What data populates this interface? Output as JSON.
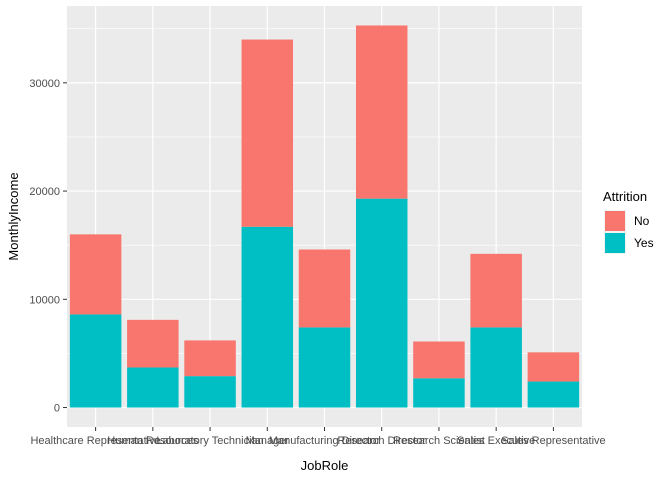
{
  "chart_data": {
    "type": "bar",
    "stacked": true,
    "categories": [
      "Healthcare Representative",
      "Human Resources",
      "Laboratory Technician",
      "Manager",
      "Manufacturing Director",
      "Research Director",
      "Research Scientist",
      "Sales Executive",
      "Sales Representative"
    ],
    "series": [
      {
        "name": "No",
        "color": "#F8766D",
        "values": [
          7400,
          4400,
          3300,
          17300,
          7200,
          16000,
          3400,
          6800,
          2700
        ]
      },
      {
        "name": "Yes",
        "color": "#00BFC4",
        "values": [
          8600,
          3700,
          2900,
          16700,
          7400,
          19300,
          2700,
          7400,
          2400
        ]
      }
    ],
    "xlabel": "JobRole",
    "ylabel": "MonthlyIncome",
    "yticks": [
      0,
      10000,
      20000,
      30000
    ],
    "ylim": [
      -1800,
      37100
    ],
    "grid": true,
    "panel_background": "#EBEBEB",
    "legend": {
      "title": "Attrition",
      "position": "right",
      "items": [
        "No",
        "Yes"
      ]
    }
  }
}
